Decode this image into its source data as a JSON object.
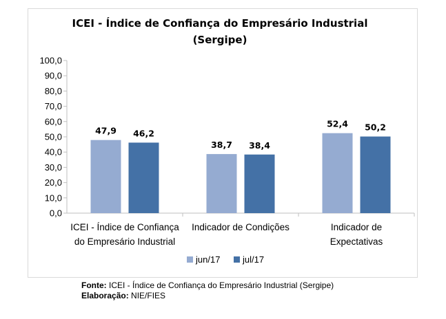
{
  "chart_data": {
    "type": "bar",
    "title": "ICEI - Índice de Confiança do Empresário Industrial",
    "subtitle": "(Sergipe)",
    "categories": [
      [
        "ICEI - Índice de Confiança",
        "do Empresário Industrial"
      ],
      [
        "Indicador de Condições"
      ],
      [
        "Indicador de",
        "Expectativas"
      ]
    ],
    "series": [
      {
        "name": "jun/17",
        "values": [
          47.9,
          38.7,
          52.4
        ],
        "labels": [
          "47,9",
          "38,7",
          "52,4"
        ],
        "color": "#95abd1"
      },
      {
        "name": "jul/17",
        "values": [
          46.2,
          38.4,
          50.2
        ],
        "labels": [
          "46,2",
          "38,4",
          "50,2"
        ],
        "color": "#4471a6"
      }
    ],
    "ylim": [
      0,
      100
    ],
    "yticks": [
      "0,0",
      "10,0",
      "20,0",
      "30,0",
      "40,0",
      "50,0",
      "60,0",
      "70,0",
      "80,0",
      "90,0",
      "100,0"
    ],
    "grid": false,
    "legend": "bottom"
  },
  "footer": {
    "source_label": "Fonte:",
    "source_text": " ICEI - Índice de Confiança do Empresário Industrial (Sergipe)",
    "credit_label": "Elaboração:",
    "credit_text": " NIE/FIES"
  }
}
